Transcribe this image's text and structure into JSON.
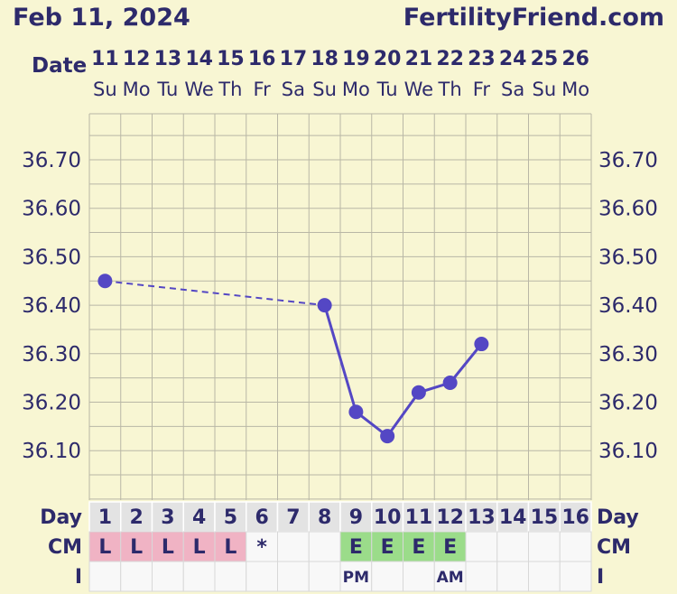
{
  "header": {
    "date": "Feb 11, 2024",
    "site": "FertilityFriend.com",
    "date_label": "Date"
  },
  "colors": {
    "background": "#f8f6d3",
    "text": "#2d2a6b",
    "grid": "#b9b7a6",
    "line": "#5447c4",
    "cm_l": "#f0b3c4",
    "cm_e": "#9bdc8a",
    "cell_gray": "#e3e3e3",
    "cell_white": "#f8f8f8"
  },
  "chart_data": {
    "type": "line",
    "ylim": [
      36.0,
      36.8
    ],
    "y_ticks": [
      "36.70",
      "36.60",
      "36.50",
      "36.40",
      "36.30",
      "36.20",
      "36.10"
    ],
    "dates": [
      "11",
      "12",
      "13",
      "14",
      "15",
      "16",
      "17",
      "18",
      "19",
      "20",
      "21",
      "22",
      "23",
      "24",
      "25",
      "26"
    ],
    "weekdays": [
      "Su",
      "Mo",
      "Tu",
      "We",
      "Th",
      "Fr",
      "Sa",
      "Su",
      "Mo",
      "Tu",
      "We",
      "Th",
      "Fr",
      "Sa",
      "Su",
      "Mo"
    ],
    "cycle_days": [
      "1",
      "2",
      "3",
      "4",
      "5",
      "6",
      "7",
      "8",
      "9",
      "10",
      "11",
      "12",
      "13",
      "14",
      "15",
      "16"
    ],
    "temperatures": [
      {
        "day": 1,
        "value": 36.45
      },
      {
        "day": 8,
        "value": 36.4
      },
      {
        "day": 9,
        "value": 36.18
      },
      {
        "day": 10,
        "value": 36.13
      },
      {
        "day": 11,
        "value": 36.22
      },
      {
        "day": 12,
        "value": 36.24
      },
      {
        "day": 13,
        "value": 36.32
      }
    ],
    "dashed_between": [
      [
        1,
        8
      ]
    ],
    "rows": {
      "day_label": "Day",
      "cm_label": "CM",
      "i_label": "I",
      "cm": [
        "L",
        "L",
        "L",
        "L",
        "L",
        "*",
        "",
        "",
        "E",
        "E",
        "E",
        "E",
        "",
        "",
        "",
        ""
      ],
      "i": [
        "",
        "",
        "",
        "",
        "",
        "",
        "",
        "",
        "PM",
        "",
        "",
        "AM",
        "",
        "",
        "",
        ""
      ]
    }
  }
}
